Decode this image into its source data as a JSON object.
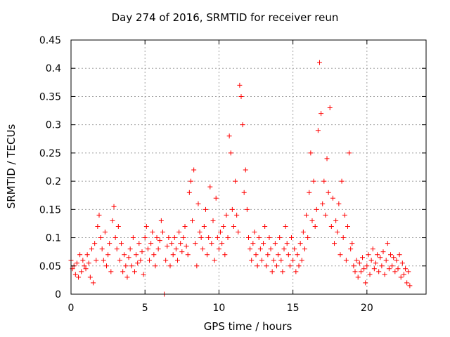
{
  "chart_data": {
    "type": "scatter",
    "title": "Day 274 of 2016, SRMTID for receiver reun",
    "xlabel": "GPS time / hours",
    "ylabel": "SRMTID / TECUs",
    "xlim": [
      0,
      24
    ],
    "ylim": [
      0,
      0.45
    ],
    "xticks": [
      0,
      5,
      10,
      15,
      20
    ],
    "xtick_labels": [
      "0",
      "5",
      "10",
      "15",
      "20"
    ],
    "yticks": [
      0,
      0.05,
      0.1,
      0.15,
      0.2,
      0.25,
      0.3,
      0.35,
      0.4,
      0.45
    ],
    "ytick_labels": [
      "0",
      "0.05",
      "0.1",
      "0.15",
      "0.2",
      "0.25",
      "0.3",
      "0.35",
      "0.4",
      "0.45"
    ],
    "grid": true,
    "marker": "+",
    "color": "#ff0000",
    "series": [
      {
        "name": "SRMTID",
        "points": [
          [
            0.0,
            0.06
          ],
          [
            0.1,
            0.045
          ],
          [
            0.2,
            0.05
          ],
          [
            0.3,
            0.035
          ],
          [
            0.4,
            0.055
          ],
          [
            0.5,
            0.03
          ],
          [
            0.6,
            0.07
          ],
          [
            0.7,
            0.04
          ],
          [
            0.8,
            0.06
          ],
          [
            0.9,
            0.05
          ],
          [
            1.0,
            0.045
          ],
          [
            1.1,
            0.07
          ],
          [
            1.2,
            0.055
          ],
          [
            1.3,
            0.03
          ],
          [
            1.4,
            0.08
          ],
          [
            1.5,
            0.02
          ],
          [
            1.6,
            0.09
          ],
          [
            1.7,
            0.06
          ],
          [
            1.8,
            0.12
          ],
          [
            1.9,
            0.14
          ],
          [
            2.0,
            0.1
          ],
          [
            2.1,
            0.08
          ],
          [
            2.2,
            0.06
          ],
          [
            2.3,
            0.11
          ],
          [
            2.4,
            0.05
          ],
          [
            2.5,
            0.07
          ],
          [
            2.6,
            0.09
          ],
          [
            2.7,
            0.04
          ],
          [
            2.8,
            0.13
          ],
          [
            2.9,
            0.155
          ],
          [
            3.0,
            0.1
          ],
          [
            3.1,
            0.08
          ],
          [
            3.2,
            0.12
          ],
          [
            3.3,
            0.06
          ],
          [
            3.4,
            0.09
          ],
          [
            3.5,
            0.04
          ],
          [
            3.6,
            0.07
          ],
          [
            3.7,
            0.05
          ],
          [
            3.8,
            0.03
          ],
          [
            3.9,
            0.065
          ],
          [
            4.0,
            0.08
          ],
          [
            4.1,
            0.05
          ],
          [
            4.2,
            0.1
          ],
          [
            4.3,
            0.04
          ],
          [
            4.4,
            0.07
          ],
          [
            4.5,
            0.055
          ],
          [
            4.6,
            0.09
          ],
          [
            4.7,
            0.06
          ],
          [
            4.8,
            0.075
          ],
          [
            4.9,
            0.035
          ],
          [
            5.0,
            0.1
          ],
          [
            5.1,
            0.12
          ],
          [
            5.2,
            0.08
          ],
          [
            5.3,
            0.06
          ],
          [
            5.4,
            0.09
          ],
          [
            5.5,
            0.11
          ],
          [
            5.6,
            0.07
          ],
          [
            5.7,
            0.05
          ],
          [
            5.8,
            0.1
          ],
          [
            5.9,
            0.08
          ],
          [
            6.0,
            0.095
          ],
          [
            6.1,
            0.13
          ],
          [
            6.2,
            0.11
          ],
          [
            6.3,
            0.0
          ],
          [
            6.4,
            0.06
          ],
          [
            6.5,
            0.085
          ],
          [
            6.6,
            0.1
          ],
          [
            6.7,
            0.05
          ],
          [
            6.8,
            0.09
          ],
          [
            6.9,
            0.07
          ],
          [
            7.0,
            0.1
          ],
          [
            7.1,
            0.08
          ],
          [
            7.2,
            0.06
          ],
          [
            7.3,
            0.11
          ],
          [
            7.4,
            0.09
          ],
          [
            7.5,
            0.075
          ],
          [
            7.6,
            0.1
          ],
          [
            7.7,
            0.12
          ],
          [
            7.8,
            0.085
          ],
          [
            7.9,
            0.07
          ],
          [
            8.0,
            0.18
          ],
          [
            8.1,
            0.2
          ],
          [
            8.2,
            0.13
          ],
          [
            8.3,
            0.22
          ],
          [
            8.4,
            0.09
          ],
          [
            8.5,
            0.05
          ],
          [
            8.6,
            0.16
          ],
          [
            8.7,
            0.11
          ],
          [
            8.8,
            0.1
          ],
          [
            8.9,
            0.08
          ],
          [
            9.0,
            0.12
          ],
          [
            9.1,
            0.15
          ],
          [
            9.2,
            0.07
          ],
          [
            9.3,
            0.1
          ],
          [
            9.4,
            0.19
          ],
          [
            9.5,
            0.09
          ],
          [
            9.6,
            0.13
          ],
          [
            9.7,
            0.06
          ],
          [
            9.8,
            0.17
          ],
          [
            9.9,
            0.1
          ],
          [
            10.0,
            0.08
          ],
          [
            10.1,
            0.11
          ],
          [
            10.2,
            0.09
          ],
          [
            10.3,
            0.12
          ],
          [
            10.4,
            0.07
          ],
          [
            10.5,
            0.14
          ],
          [
            10.6,
            0.1
          ],
          [
            10.7,
            0.28
          ],
          [
            10.8,
            0.25
          ],
          [
            10.9,
            0.15
          ],
          [
            11.0,
            0.12
          ],
          [
            11.1,
            0.2
          ],
          [
            11.2,
            0.14
          ],
          [
            11.3,
            0.11
          ],
          [
            11.4,
            0.37
          ],
          [
            11.5,
            0.35
          ],
          [
            11.6,
            0.3
          ],
          [
            11.7,
            0.18
          ],
          [
            11.8,
            0.22
          ],
          [
            11.9,
            0.15
          ],
          [
            12.0,
            0.1
          ],
          [
            12.1,
            0.08
          ],
          [
            12.2,
            0.06
          ],
          [
            12.3,
            0.09
          ],
          [
            12.4,
            0.11
          ],
          [
            12.5,
            0.07
          ],
          [
            12.6,
            0.05
          ],
          [
            12.7,
            0.1
          ],
          [
            12.8,
            0.08
          ],
          [
            12.9,
            0.06
          ],
          [
            13.0,
            0.09
          ],
          [
            13.1,
            0.12
          ],
          [
            13.2,
            0.05
          ],
          [
            13.3,
            0.07
          ],
          [
            13.4,
            0.1
          ],
          [
            13.5,
            0.08
          ],
          [
            13.6,
            0.04
          ],
          [
            13.7,
            0.06
          ],
          [
            13.8,
            0.09
          ],
          [
            13.9,
            0.05
          ],
          [
            14.0,
            0.07
          ],
          [
            14.1,
            0.1
          ],
          [
            14.2,
            0.06
          ],
          [
            14.3,
            0.04
          ],
          [
            14.4,
            0.08
          ],
          [
            14.5,
            0.12
          ],
          [
            14.6,
            0.09
          ],
          [
            14.7,
            0.07
          ],
          [
            14.8,
            0.05
          ],
          [
            14.9,
            0.1
          ],
          [
            15.0,
            0.06
          ],
          [
            15.1,
            0.08
          ],
          [
            15.2,
            0.04
          ],
          [
            15.3,
            0.07
          ],
          [
            15.4,
            0.05
          ],
          [
            15.5,
            0.09
          ],
          [
            15.6,
            0.06
          ],
          [
            15.7,
            0.11
          ],
          [
            15.8,
            0.08
          ],
          [
            15.9,
            0.14
          ],
          [
            16.0,
            0.1
          ],
          [
            16.1,
            0.18
          ],
          [
            16.2,
            0.25
          ],
          [
            16.3,
            0.13
          ],
          [
            16.4,
            0.2
          ],
          [
            16.5,
            0.12
          ],
          [
            16.6,
            0.15
          ],
          [
            16.7,
            0.29
          ],
          [
            16.8,
            0.41
          ],
          [
            16.9,
            0.32
          ],
          [
            17.0,
            0.16
          ],
          [
            17.1,
            0.2
          ],
          [
            17.2,
            0.14
          ],
          [
            17.3,
            0.24
          ],
          [
            17.4,
            0.18
          ],
          [
            17.5,
            0.33
          ],
          [
            17.6,
            0.12
          ],
          [
            17.7,
            0.17
          ],
          [
            17.8,
            0.09
          ],
          [
            17.9,
            0.13
          ],
          [
            18.0,
            0.11
          ],
          [
            18.1,
            0.16
          ],
          [
            18.2,
            0.07
          ],
          [
            18.3,
            0.2
          ],
          [
            18.4,
            0.1
          ],
          [
            18.5,
            0.14
          ],
          [
            18.6,
            0.06
          ],
          [
            18.7,
            0.12
          ],
          [
            18.8,
            0.25
          ],
          [
            18.9,
            0.08
          ],
          [
            19.0,
            0.09
          ],
          [
            19.1,
            0.05
          ],
          [
            19.2,
            0.04
          ],
          [
            19.3,
            0.06
          ],
          [
            19.4,
            0.03
          ],
          [
            19.5,
            0.055
          ],
          [
            19.6,
            0.04
          ],
          [
            19.7,
            0.065
          ],
          [
            19.8,
            0.045
          ],
          [
            19.9,
            0.02
          ],
          [
            20.0,
            0.05
          ],
          [
            20.1,
            0.07
          ],
          [
            20.2,
            0.035
          ],
          [
            20.3,
            0.06
          ],
          [
            20.4,
            0.08
          ],
          [
            20.5,
            0.045
          ],
          [
            20.6,
            0.055
          ],
          [
            20.7,
            0.07
          ],
          [
            20.8,
            0.04
          ],
          [
            20.9,
            0.065
          ],
          [
            21.0,
            0.05
          ],
          [
            21.1,
            0.075
          ],
          [
            21.2,
            0.035
          ],
          [
            21.3,
            0.06
          ],
          [
            21.4,
            0.09
          ],
          [
            21.5,
            0.045
          ],
          [
            21.6,
            0.07
          ],
          [
            21.7,
            0.05
          ],
          [
            21.8,
            0.065
          ],
          [
            21.9,
            0.04
          ],
          [
            22.0,
            0.06
          ],
          [
            22.1,
            0.045
          ],
          [
            22.2,
            0.07
          ],
          [
            22.3,
            0.03
          ],
          [
            22.4,
            0.055
          ],
          [
            22.5,
            0.035
          ],
          [
            22.6,
            0.045
          ],
          [
            22.7,
            0.02
          ],
          [
            22.8,
            0.04
          ],
          [
            22.9,
            0.015
          ]
        ]
      }
    ]
  }
}
